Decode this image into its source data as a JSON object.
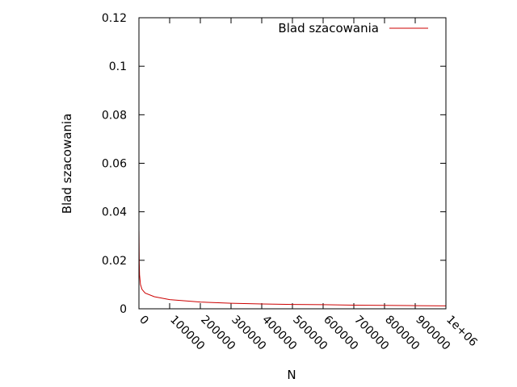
{
  "chart_data": {
    "type": "line",
    "title": "",
    "xlabel": "N",
    "ylabel": "Blad szacowania",
    "xlim": [
      0,
      1000000
    ],
    "ylim": [
      0,
      0.12
    ],
    "xticks": [
      0,
      100000,
      200000,
      300000,
      400000,
      500000,
      600000,
      700000,
      800000,
      900000,
      1000000
    ],
    "xtick_labels": [
      "0",
      "100000",
      "200000",
      "300000",
      "400000",
      "500000",
      "600000",
      "700000",
      "800000",
      "900000",
      "1e+06"
    ],
    "yticks": [
      0,
      0.02,
      0.04,
      0.06,
      0.08,
      0.1,
      0.12
    ],
    "ytick_labels": [
      "0",
      "0.02",
      "0.04",
      "0.06",
      "0.08",
      "0.1",
      "0.12"
    ],
    "grid": false,
    "legend_position": "top-right",
    "series": [
      {
        "name": "Blad szacowania",
        "color": "#cc0000",
        "x": [
          100,
          1000,
          2000,
          5000,
          10000,
          20000,
          50000,
          100000,
          200000,
          300000,
          400000,
          500000,
          600000,
          700000,
          800000,
          900000,
          1000000
        ],
        "y": [
          0.032,
          0.019,
          0.014,
          0.01,
          0.008,
          0.0065,
          0.005,
          0.0038,
          0.0028,
          0.0023,
          0.002,
          0.0018,
          0.0017,
          0.0015,
          0.0014,
          0.0013,
          0.0012
        ]
      }
    ]
  }
}
